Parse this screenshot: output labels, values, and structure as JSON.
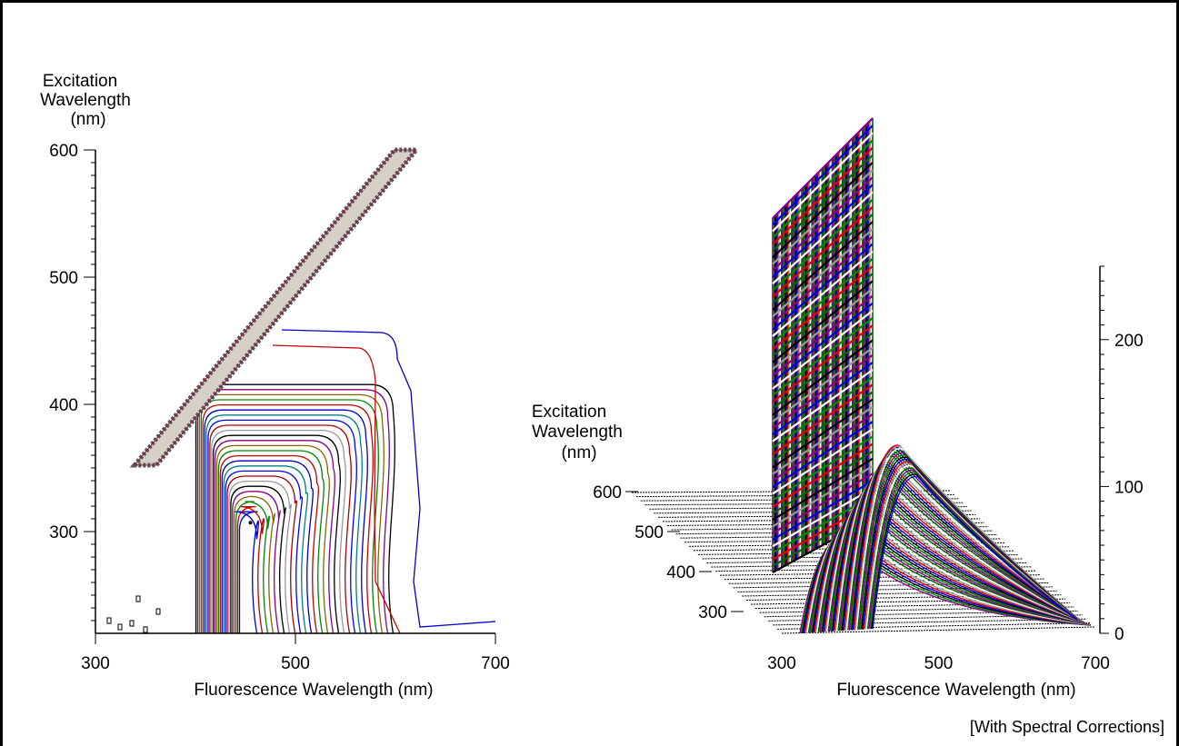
{
  "note": "[With Spectral Corrections]",
  "chart_data": [
    {
      "type": "contour",
      "xlabel": "Fluorescence Wavelength (nm)",
      "ylabel": [
        "Excitation",
        "Wavelength",
        "(nm)"
      ],
      "xlim": [
        300,
        700
      ],
      "ylim": [
        220,
        600
      ],
      "xticks": [
        300,
        500,
        700
      ],
      "yticks": [
        300,
        400,
        500,
        600
      ],
      "xtick_labels": [
        "300",
        "500",
        "700"
      ],
      "ytick_labels": [
        "300",
        "400",
        "500",
        "600"
      ],
      "rayleigh_band": {
        "from": [
          350,
          355
        ],
        "to": [
          610,
          600
        ]
      },
      "peak": {
        "emission": 455,
        "excitation": 307
      },
      "contour_colors": [
        "#0000cc",
        "#cc0000",
        "#008800",
        "#886600",
        "#880088",
        "#000000",
        "#999999",
        "#aa0000",
        "#0000ff",
        "#008080"
      ]
    },
    {
      "type": "surface3d",
      "xlabel": "Fluorescence Wavelength (nm)",
      "ylabel": [
        "Excitation",
        "Wavelength",
        "(nm)"
      ],
      "zlim": [
        0,
        250
      ],
      "xticks": [
        300,
        500,
        700
      ],
      "xtick_labels": [
        "300",
        "500",
        "700"
      ],
      "yticks": [
        300,
        400,
        500,
        600
      ],
      "ytick_labels": [
        "300",
        "400",
        "500",
        "600"
      ],
      "zticks": [
        0,
        100,
        200
      ],
      "ztick_labels": [
        "0",
        "100",
        "200"
      ],
      "peak": {
        "emission": 455,
        "excitation": 307,
        "intensity": 130
      },
      "scatter_max": 250,
      "stripe_colors": [
        "#880088",
        "#008800",
        "#000000",
        "#0000dd",
        "#dd0000",
        "#999999",
        "#ffffff",
        "#006600"
      ]
    }
  ]
}
